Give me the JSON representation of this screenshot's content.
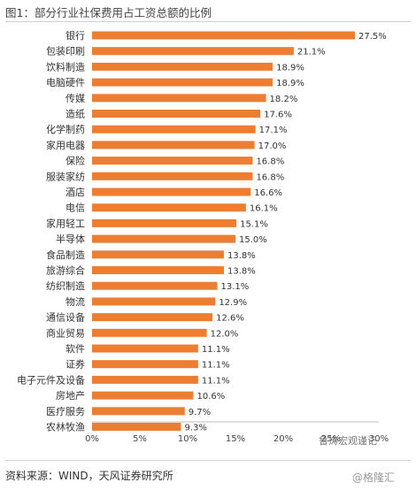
{
  "header": {
    "title": "图1：部分行业社保费用占工资总额的比例"
  },
  "footer": {
    "source": "资料来源：WIND，天风证券研究所",
    "watermark_chart": "鲁涛宏观谨记",
    "watermark_corner": "@格隆汇"
  },
  "chart_data": {
    "type": "bar",
    "orientation": "horizontal",
    "categories": [
      "银行",
      "包装印刷",
      "饮料制造",
      "电脑硬件",
      "传媒",
      "造纸",
      "化学制药",
      "家用电器",
      "保险",
      "服装家纺",
      "酒店",
      "电信",
      "家用轻工",
      "半导体",
      "食品制造",
      "旅游综合",
      "纺织制造",
      "物流",
      "通信设备",
      "商业贸易",
      "软件",
      "证券",
      "电子元件及设备",
      "房地产",
      "医疗服务",
      "农林牧渔"
    ],
    "values": [
      27.5,
      21.1,
      18.9,
      18.9,
      18.2,
      17.6,
      17.1,
      17.0,
      16.8,
      16.8,
      16.6,
      16.1,
      15.1,
      15.0,
      13.8,
      13.8,
      13.1,
      12.9,
      12.6,
      12.0,
      11.1,
      11.1,
      11.1,
      10.6,
      9.7,
      9.3
    ],
    "value_labels": [
      "27.5%",
      "21.1%",
      "18.9%",
      "18.9%",
      "18.2%",
      "17.6%",
      "17.1%",
      "17.0%",
      "16.8%",
      "16.8%",
      "16.6%",
      "16.1%",
      "15.1%",
      "15.0%",
      "13.8%",
      "13.8%",
      "13.1%",
      "12.9%",
      "12.6%",
      "12.0%",
      "11.1%",
      "11.1%",
      "11.1%",
      "10.6%",
      "9.7%",
      "9.3%"
    ],
    "x_ticks": [
      0,
      5,
      10,
      15,
      20,
      25,
      30
    ],
    "x_tick_labels": [
      "0%",
      "5%",
      "10%",
      "15%",
      "20%",
      "25%",
      "30%"
    ],
    "xlim": [
      0,
      30
    ],
    "bar_color": "#ED7D31",
    "grid": false
  }
}
